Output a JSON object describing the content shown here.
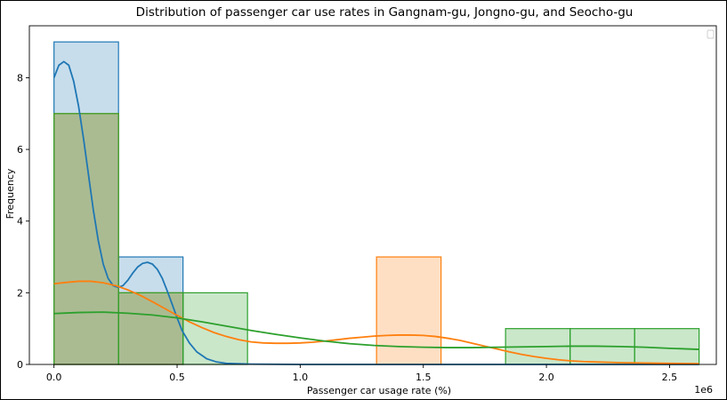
{
  "chart_data": {
    "type": "histogram",
    "title": "Distribution of passenger car use rates in Gangnam-gu, Jongno-gu, and Seocho-gu",
    "xlabel": "Passenger car usage rate (%)",
    "ylabel": "Frequency",
    "x_offset_text": "1e6",
    "xlim": [
      -0.1,
      2.69
    ],
    "ylim": [
      0,
      9.45
    ],
    "x_ticks": [
      0.0,
      0.5,
      1.0,
      1.5,
      2.0,
      2.5
    ],
    "x_tick_labels": [
      "0.0",
      "0.5",
      "1.0",
      "1.5",
      "2.0",
      "2.5"
    ],
    "y_ticks": [
      0,
      2,
      4,
      6,
      8
    ],
    "y_tick_labels": [
      "0",
      "2",
      "4",
      "6",
      "8"
    ],
    "legend": {
      "placement": "top-right",
      "entries": []
    },
    "series": [
      {
        "color": "#1f77b4",
        "bins": [
          {
            "x0": 0.0,
            "x1": 0.262,
            "count": 9
          },
          {
            "x0": 0.262,
            "x1": 0.524,
            "count": 3
          }
        ],
        "kde": [
          [
            0.0,
            8.0
          ],
          [
            0.02,
            8.35
          ],
          [
            0.04,
            8.45
          ],
          [
            0.06,
            8.35
          ],
          [
            0.08,
            7.9
          ],
          [
            0.1,
            7.2
          ],
          [
            0.12,
            6.3
          ],
          [
            0.14,
            5.3
          ],
          [
            0.16,
            4.3
          ],
          [
            0.18,
            3.45
          ],
          [
            0.2,
            2.8
          ],
          [
            0.22,
            2.4
          ],
          [
            0.24,
            2.2
          ],
          [
            0.26,
            2.15
          ],
          [
            0.28,
            2.2
          ],
          [
            0.3,
            2.35
          ],
          [
            0.32,
            2.55
          ],
          [
            0.34,
            2.72
          ],
          [
            0.36,
            2.82
          ],
          [
            0.38,
            2.85
          ],
          [
            0.4,
            2.8
          ],
          [
            0.42,
            2.65
          ],
          [
            0.44,
            2.4
          ],
          [
            0.46,
            2.05
          ],
          [
            0.48,
            1.68
          ],
          [
            0.5,
            1.3
          ],
          [
            0.52,
            0.95
          ],
          [
            0.55,
            0.6
          ],
          [
            0.58,
            0.35
          ],
          [
            0.62,
            0.16
          ],
          [
            0.66,
            0.07
          ],
          [
            0.7,
            0.03
          ],
          [
            0.8,
            0.01
          ],
          [
            1.0,
            0.0
          ],
          [
            1.5,
            0.0
          ],
          [
            2.0,
            0.0
          ],
          [
            2.62,
            0.0
          ]
        ]
      },
      {
        "color": "#ff7f0e",
        "bins": [
          {
            "x0": 0.0,
            "x1": 0.262,
            "count": 7
          },
          {
            "x0": 0.262,
            "x1": 0.524,
            "count": 2
          },
          {
            "x0": 1.31,
            "x1": 1.572,
            "count": 3
          }
        ],
        "kde": [
          [
            0.0,
            2.25
          ],
          [
            0.05,
            2.29
          ],
          [
            0.1,
            2.32
          ],
          [
            0.15,
            2.32
          ],
          [
            0.2,
            2.28
          ],
          [
            0.25,
            2.2
          ],
          [
            0.3,
            2.08
          ],
          [
            0.35,
            1.93
          ],
          [
            0.4,
            1.75
          ],
          [
            0.45,
            1.56
          ],
          [
            0.5,
            1.37
          ],
          [
            0.55,
            1.19
          ],
          [
            0.6,
            1.03
          ],
          [
            0.65,
            0.89
          ],
          [
            0.7,
            0.78
          ],
          [
            0.75,
            0.69
          ],
          [
            0.8,
            0.63
          ],
          [
            0.85,
            0.6
          ],
          [
            0.9,
            0.59
          ],
          [
            0.95,
            0.59
          ],
          [
            1.0,
            0.6
          ],
          [
            1.05,
            0.62
          ],
          [
            1.1,
            0.65
          ],
          [
            1.15,
            0.69
          ],
          [
            1.2,
            0.73
          ],
          [
            1.25,
            0.76
          ],
          [
            1.3,
            0.79
          ],
          [
            1.35,
            0.81
          ],
          [
            1.4,
            0.82
          ],
          [
            1.45,
            0.82
          ],
          [
            1.5,
            0.81
          ],
          [
            1.55,
            0.78
          ],
          [
            1.6,
            0.73
          ],
          [
            1.65,
            0.67
          ],
          [
            1.7,
            0.59
          ],
          [
            1.75,
            0.51
          ],
          [
            1.8,
            0.43
          ],
          [
            1.85,
            0.35
          ],
          [
            1.9,
            0.28
          ],
          [
            1.95,
            0.22
          ],
          [
            2.0,
            0.17
          ],
          [
            2.05,
            0.13
          ],
          [
            2.1,
            0.1
          ],
          [
            2.15,
            0.08
          ],
          [
            2.2,
            0.07
          ],
          [
            2.3,
            0.05
          ],
          [
            2.4,
            0.04
          ],
          [
            2.5,
            0.03
          ],
          [
            2.62,
            0.02
          ]
        ]
      },
      {
        "color": "#2ca02c",
        "bins": [
          {
            "x0": 0.0,
            "x1": 0.262,
            "count": 7
          },
          {
            "x0": 0.262,
            "x1": 0.524,
            "count": 2
          },
          {
            "x0": 0.524,
            "x1": 0.786,
            "count": 2
          },
          {
            "x0": 1.834,
            "x1": 2.096,
            "count": 1
          },
          {
            "x0": 2.096,
            "x1": 2.358,
            "count": 1
          },
          {
            "x0": 2.358,
            "x1": 2.62,
            "count": 1
          }
        ],
        "kde": [
          [
            0.0,
            1.42
          ],
          [
            0.1,
            1.45
          ],
          [
            0.2,
            1.46
          ],
          [
            0.3,
            1.43
          ],
          [
            0.4,
            1.38
          ],
          [
            0.5,
            1.3
          ],
          [
            0.6,
            1.19
          ],
          [
            0.7,
            1.07
          ],
          [
            0.8,
            0.95
          ],
          [
            0.9,
            0.84
          ],
          [
            1.0,
            0.74
          ],
          [
            1.1,
            0.65
          ],
          [
            1.2,
            0.58
          ],
          [
            1.3,
            0.53
          ],
          [
            1.4,
            0.5
          ],
          [
            1.5,
            0.48
          ],
          [
            1.6,
            0.47
          ],
          [
            1.7,
            0.47
          ],
          [
            1.8,
            0.48
          ],
          [
            1.9,
            0.49
          ],
          [
            2.0,
            0.5
          ],
          [
            2.1,
            0.51
          ],
          [
            2.2,
            0.51
          ],
          [
            2.3,
            0.5
          ],
          [
            2.4,
            0.48
          ],
          [
            2.5,
            0.45
          ],
          [
            2.62,
            0.42
          ]
        ]
      }
    ]
  }
}
